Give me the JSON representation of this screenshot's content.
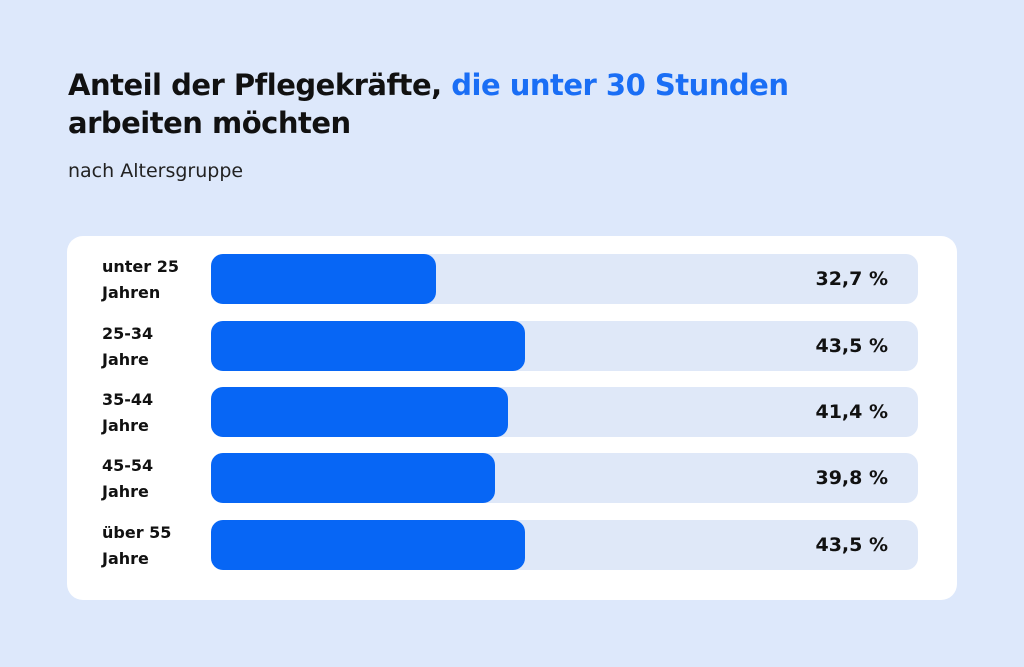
{
  "title": {
    "part1": "Anteil der Pflegekräfte, ",
    "highlight": "die unter 30 Stunden",
    "part2": "arbeiten möchten"
  },
  "subtitle": "nach Altersgruppe",
  "colors": {
    "background": "#dde8fb",
    "bar": "#0766f5",
    "track": "#dfe8f8",
    "highlight": "#1a6ef5"
  },
  "chart_data": {
    "type": "bar",
    "orientation": "horizontal",
    "title": "Anteil der Pflegekräfte, die unter 30 Stunden arbeiten möchten",
    "subtitle": "nach Altersgruppe",
    "categories": [
      "unter 25 Jahren",
      "25-34 Jahre",
      "35-44 Jahre",
      "45-54 Jahre",
      "über 55 Jahre"
    ],
    "label_lines": [
      [
        "unter 25",
        "Jahren"
      ],
      [
        "25-34",
        "Jahre"
      ],
      [
        "35-44",
        "Jahre"
      ],
      [
        "45-54",
        "Jahre"
      ],
      [
        "über 55",
        "Jahre"
      ]
    ],
    "values": [
      32.7,
      43.5,
      41.4,
      39.8,
      43.5
    ],
    "value_labels": [
      "32,7 %",
      "43,5 %",
      "41,4 %",
      "39,8 %",
      "43,5 %"
    ],
    "unit": "%",
    "xlim": [
      0,
      100
    ]
  }
}
